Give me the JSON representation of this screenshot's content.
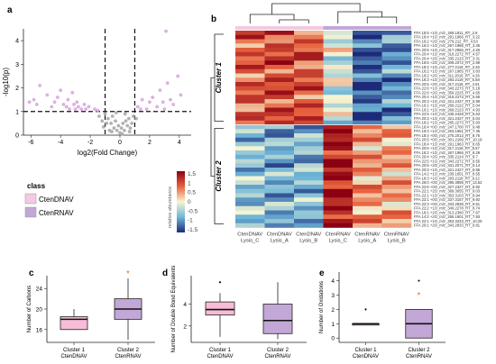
{
  "panel_labels": {
    "a": "a",
    "b": "b",
    "c": "c",
    "d": "d",
    "e": "e"
  },
  "legend": {
    "title": "class",
    "items": [
      {
        "label": "CtenDNAV",
        "color": "#f3c9e4"
      },
      {
        "label": "CtenRNAV",
        "color": "#c3a7d6"
      }
    ]
  },
  "colorbar": {
    "title": "relative abundance",
    "ticks": [
      "1.5",
      "1",
      "0.5",
      "0",
      "-0.5",
      "-1",
      "-1.5"
    ]
  },
  "chart_data": [
    {
      "type": "scatter",
      "name": "volcano",
      "xlabel": "log2(Fold Change)",
      "ylabel": "-log10(p)",
      "xlim": [
        -6.5,
        4.8
      ],
      "ylim": [
        0,
        4.5
      ],
      "xticks": [
        -6,
        -4,
        -2,
        0,
        2,
        4
      ],
      "yticks": [
        0,
        1,
        2,
        3,
        4
      ],
      "thresholds": {
        "x": [
          -1,
          1
        ],
        "y": 1
      },
      "significant_color": "#d9a6de",
      "nonsignificant_color": "#aaaaaa",
      "points": [
        [
          -6.1,
          1.4
        ],
        [
          -5.8,
          1.5
        ],
        [
          -5.4,
          2.1
        ],
        [
          -5.6,
          1.3
        ],
        [
          -4.9,
          1.7
        ],
        [
          -4.6,
          1.2
        ],
        [
          -4.4,
          1.4
        ],
        [
          -4.2,
          1.6
        ],
        [
          -4.0,
          1.9
        ],
        [
          -3.8,
          1.3
        ],
        [
          -3.6,
          1.2
        ],
        [
          -3.5,
          1.5
        ],
        [
          -3.4,
          1.1
        ],
        [
          -3.2,
          1.8
        ],
        [
          -3.1,
          1.3
        ],
        [
          -3.0,
          1.1
        ],
        [
          -2.9,
          1.4
        ],
        [
          -2.8,
          1.2
        ],
        [
          -2.6,
          1.1
        ],
        [
          -2.4,
          1.3
        ],
        [
          -2.3,
          1.1
        ],
        [
          -2.1,
          1.2
        ],
        [
          -1.7,
          1.1
        ],
        [
          -1.5,
          1.05
        ],
        [
          1.2,
          1.2
        ],
        [
          1.5,
          1.5
        ],
        [
          1.8,
          1.1
        ],
        [
          2.0,
          1.4
        ],
        [
          2.2,
          1.6
        ],
        [
          2.5,
          1.2
        ],
        [
          2.7,
          1.9
        ],
        [
          2.9,
          1.4
        ],
        [
          3.0,
          1.1
        ],
        [
          3.2,
          2.2
        ],
        [
          3.4,
          1.5
        ],
        [
          3.6,
          1.3
        ],
        [
          3.9,
          2.5
        ],
        [
          4.1,
          1.7
        ],
        [
          3.1,
          4.4
        ],
        [
          1.4,
          1.1
        ],
        [
          -1.0,
          0.9
        ],
        [
          -0.8,
          0.7
        ],
        [
          -0.6,
          0.5
        ],
        [
          -0.5,
          0.8
        ],
        [
          -0.4,
          0.3
        ],
        [
          -0.3,
          0.6
        ],
        [
          -0.2,
          0.2
        ],
        [
          -0.1,
          0.4
        ],
        [
          0.0,
          0.1
        ],
        [
          0.1,
          0.3
        ],
        [
          0.2,
          0.5
        ],
        [
          0.3,
          0.2
        ],
        [
          0.4,
          0.6
        ],
        [
          0.5,
          0.4
        ],
        [
          0.6,
          0.7
        ],
        [
          0.7,
          0.3
        ],
        [
          0.8,
          0.5
        ],
        [
          0.9,
          0.8
        ],
        [
          -0.7,
          0.2
        ],
        [
          -0.9,
          0.5
        ],
        [
          -1.2,
          0.6
        ],
        [
          -1.4,
          0.8
        ],
        [
          1.1,
          0.7
        ],
        [
          0.35,
          0.9
        ],
        [
          -0.25,
          0.95
        ],
        [
          -0.55,
          0.15
        ],
        [
          0.15,
          0.05
        ],
        [
          0.65,
          0.15
        ],
        [
          -1.1,
          0.35
        ]
      ]
    },
    {
      "type": "heatmap",
      "name": "heatmap",
      "columns": [
        "CtenDNAV\nLysis_C",
        "CtenDNAV\nLysis_A",
        "CtenDNAV\nLysis_B",
        "CtenRNAV\nLysis_C",
        "CtenRNAV\nLysis_A",
        "CtenRNAV\nLysis_B"
      ],
      "clusters": [
        "Cluster 1",
        "Cluster 2"
      ],
      "cluster1_rows": 22,
      "rows": [
        "FFA 18:5 +1O_m/z_269.1811_RT_2.8",
        "FFA 18:4 +1O_m/z_291.1966_RT_3.22",
        "FFA 16:2 +2O_m/z_279.212_RT_4.53",
        "FFA 16:2 +1O_m/z_267.1966_RT_3.46",
        "FFA 20:5 +1O_m/z_317.2966_RT_4.26",
        "FFA 20:4 +1O_m/z_319.2272_RT_4.57",
        "FFA 20:4 +2O_m/z_335.2123_RT_3.31",
        "FFA 18:5 +2O_m/z_309.2072_RT_2.98",
        "FFA 18:2 +1O_m/z_277.2119_RT_3.26",
        "FFA 16:2 +1O_m/z_267.1965_RT_3.83",
        "FFA 18:2 +2O_m/z_311.2016_RT_4.26",
        "FFA 18:3 +1O_m/z_293.2119_RT_5.58",
        "FFA 20:5 +2O_m/z_317.2118_RT_4.91",
        "FFA 22:6 +1O_m/z_343.2273_RT_5.18",
        "FFA 22:6 +2O_m/z_359.2225_RT_4.65",
        "FFA 20:4 +1O_m/z_319.2273_RT_5.56",
        "FFA 20:3 +1O_m/z_321.2427_RT_5.99",
        "FFA 16:1 +1O_m/z_269.2122_RT_5.04",
        "FFA 16:1 +1O_m/z_269.2123_RT_4.93",
        "FFA 22:5 +1O_m/z_345.2428_RT_5.63",
        "FFA 20:3 +1O_m/z_321.2427_RT_5.04",
        "FFA 18:2 +1O_m/z_295.2273_RT_5.93",
        "FFA 16:4 +0O_m/z_247.1700_RT_9.48",
        "FFA 16:3 +1O_m/z_263.1651_RT_7.45",
        "FFA 18:4 +0O_m/z_275.2013_RT_8.76",
        "FFA 20:5 +0O_m/z_301.2169_RT_10.19",
        "FFA 18:4 +1O_m/z_291.1963_RT_8.65",
        "FFA 20:5 +1O_m/z_317.2118_RT_8.57",
        "FFA 16:2 +1O_m/z_267.1966_RT_8.29",
        "FFA 20:4 +2O_m/z_335.2124_RT_8.7",
        "FFA 22:5 +1O_m/z_343.2272_RT_9.55",
        "FFA 20:5 +2O_m/z_331.2071_RT_9.14",
        "FFA 20:3 +1O_m/z_321.2427_RT_8.96",
        "FFA 14:2 +1O_m/z_239.1651_RT_8.55",
        "FFA 18:3 +1O_m/z_293.2118_RT_9.22",
        "FFA 26:0 +0O_m/z_395.3895_RT_13.52",
        "FFA 22:6 +0O_m/z_327.2327_RT_8.92",
        "FFA 22:1 +2O_m/z_369.3055_RT_9.03",
        "FFA 22:1 +1O_m/z_353.3103_RT_8.94",
        "FFA 22:1 +0O_m/z_337.3157_RT_9.92",
        "FFA 22:3 +0O_m/z_333.2838_RT_9.51",
        "FFA 22:2 +1O_m/z_349.2278_RT_8.74",
        "FFA 18:1 +2O_m/z_313.2380_RT_7.67",
        "FFA 14:2 +2O_m/z_255.1601_RT_7.93",
        "FFA 22:1 +1O_m/z_353.3233_RT_10.29",
        "FFA 20:1 +2O_m/z_343.2833_RT_9.81"
      ]
    },
    {
      "type": "box",
      "name": "carbons",
      "ylabel": "Number of Carbons",
      "categories": [
        "Cluster 1\nCtenDNAV",
        "Cluster 2\nCtenRNAV"
      ],
      "yticks": [
        16,
        20,
        24
      ],
      "ylim": [
        13.5,
        26.5
      ],
      "boxes": [
        {
          "min": 16,
          "q1": 16,
          "median": 18,
          "q3": 18.5,
          "max": 20,
          "color": "#f6bcd8"
        },
        {
          "min": 14,
          "q1": 18,
          "median": 20,
          "q3": 22,
          "max": 26,
          "color": "#c3a7d6"
        }
      ],
      "outliers": [],
      "significance": "*"
    },
    {
      "type": "box",
      "name": "double-bonds",
      "ylabel": "Number of Double Bond Equivalents",
      "categories": [
        "Cluster 1\nCtenDNAV",
        "Cluster 2\nCtenRNAV"
      ],
      "yticks": [
        2,
        4
      ],
      "ylim": [
        0.5,
        6.6
      ],
      "boxes": [
        {
          "min": 1,
          "q1": 3,
          "median": 3.5,
          "q3": 4.2,
          "max": 5,
          "color": "#f6bcd8"
        },
        {
          "min": 0.8,
          "q1": 1.3,
          "median": 2.5,
          "q3": 4,
          "max": 6,
          "color": "#c3a7d6"
        }
      ],
      "outliers": [
        [
          0,
          6
        ]
      ],
      "significance": ""
    },
    {
      "type": "box",
      "name": "oxidations",
      "ylabel": "Number of Oxidations",
      "categories": [
        "Cluster 1\nCtenDNAV",
        "Cluster 2\nCtenRNAV"
      ],
      "yticks": [
        0,
        1,
        2,
        3,
        4
      ],
      "ylim": [
        -0.3,
        4.6
      ],
      "boxes": [
        {
          "min": 1,
          "q1": 1,
          "median": 1,
          "q3": 1,
          "max": 1,
          "color": "#f6bcd8"
        },
        {
          "min": 0,
          "q1": 0,
          "median": 1,
          "q3": 2,
          "max": 2,
          "color": "#c3a7d6"
        }
      ],
      "outliers": [
        [
          0,
          2
        ],
        [
          1,
          4
        ]
      ],
      "significance": "*"
    }
  ]
}
